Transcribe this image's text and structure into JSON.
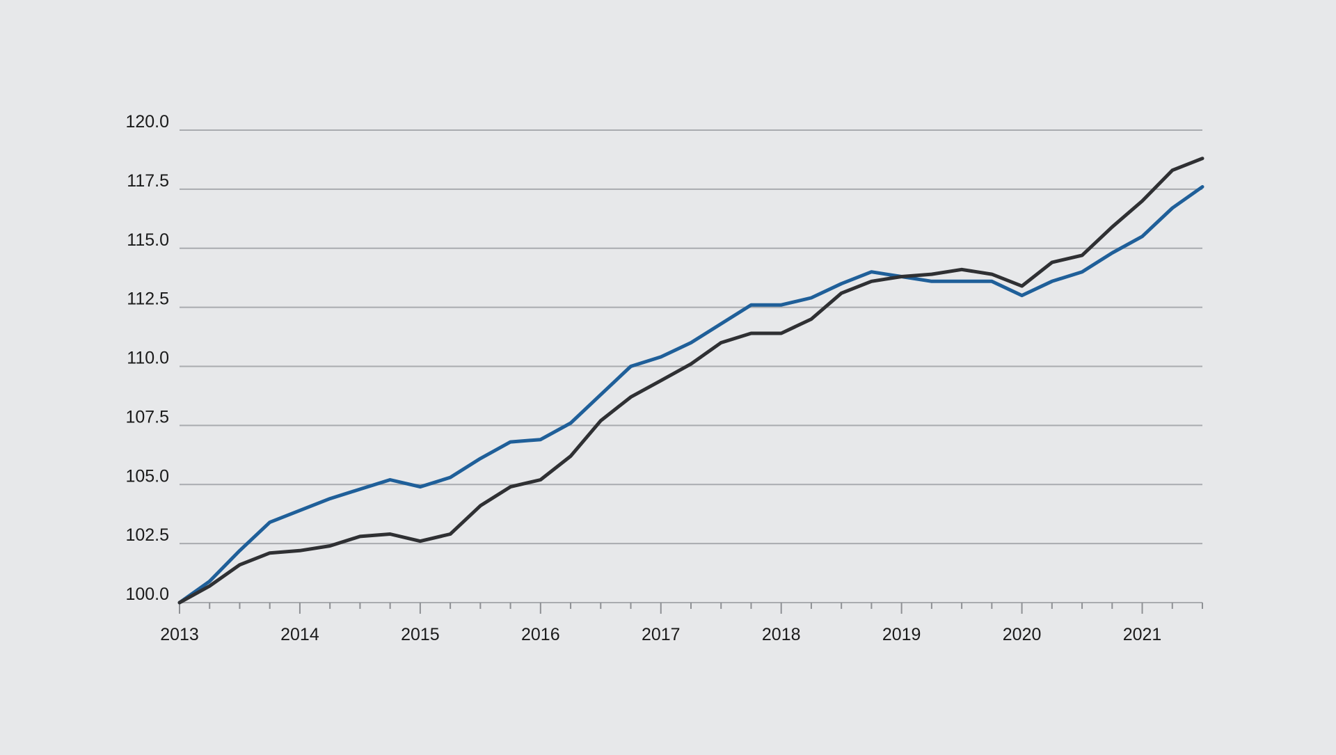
{
  "colors": {
    "background": "#e7e8ea",
    "series_blue": "#1f5f99",
    "series_dark": "#2f3033",
    "grid": "#a9abaf"
  },
  "chart_data": {
    "type": "line",
    "title": "",
    "xlabel": "",
    "ylabel": "",
    "x_tick_labels": [
      "2013",
      "2014",
      "2015",
      "2016",
      "2017",
      "2018",
      "2019",
      "2020",
      "2021"
    ],
    "y_tick_labels": [
      "100.0",
      "102.5",
      "105.0",
      "107.5",
      "110.0",
      "112.5",
      "115.0",
      "117.5",
      "120.0"
    ],
    "xlim": [
      2013.0,
      2021.5
    ],
    "ylim": [
      100,
      120
    ],
    "grid": true,
    "legend": "none",
    "x": [
      2013.0,
      2013.25,
      2013.5,
      2013.75,
      2014.0,
      2014.25,
      2014.5,
      2014.75,
      2015.0,
      2015.25,
      2015.5,
      2015.75,
      2016.0,
      2016.25,
      2016.5,
      2016.75,
      2017.0,
      2017.25,
      2017.5,
      2017.75,
      2018.0,
      2018.25,
      2018.5,
      2018.75,
      2019.0,
      2019.25,
      2019.5,
      2019.75,
      2020.0,
      2020.25,
      2020.5,
      2020.75,
      2021.0,
      2021.25,
      2021.5
    ],
    "series": [
      {
        "color": "#1f5f99",
        "values": [
          100.0,
          100.9,
          102.2,
          103.4,
          103.9,
          104.4,
          104.8,
          105.2,
          104.9,
          105.3,
          106.1,
          106.8,
          106.9,
          107.6,
          108.8,
          110.0,
          110.4,
          111.0,
          111.8,
          112.6,
          112.6,
          112.9,
          113.5,
          114.0,
          113.8,
          113.6,
          113.6,
          113.6,
          113.0,
          113.6,
          114.0,
          114.8,
          115.5,
          116.7,
          117.6
        ]
      },
      {
        "color": "#2f3033",
        "values": [
          100.0,
          100.7,
          101.6,
          102.1,
          102.2,
          102.4,
          102.8,
          102.9,
          102.6,
          102.9,
          104.1,
          104.9,
          105.2,
          106.2,
          107.7,
          108.7,
          109.4,
          110.1,
          111.0,
          111.4,
          111.4,
          112.0,
          113.1,
          113.6,
          113.8,
          113.9,
          114.1,
          113.9,
          113.4,
          114.4,
          114.7,
          115.9,
          117.0,
          118.3,
          118.8
        ]
      }
    ]
  }
}
